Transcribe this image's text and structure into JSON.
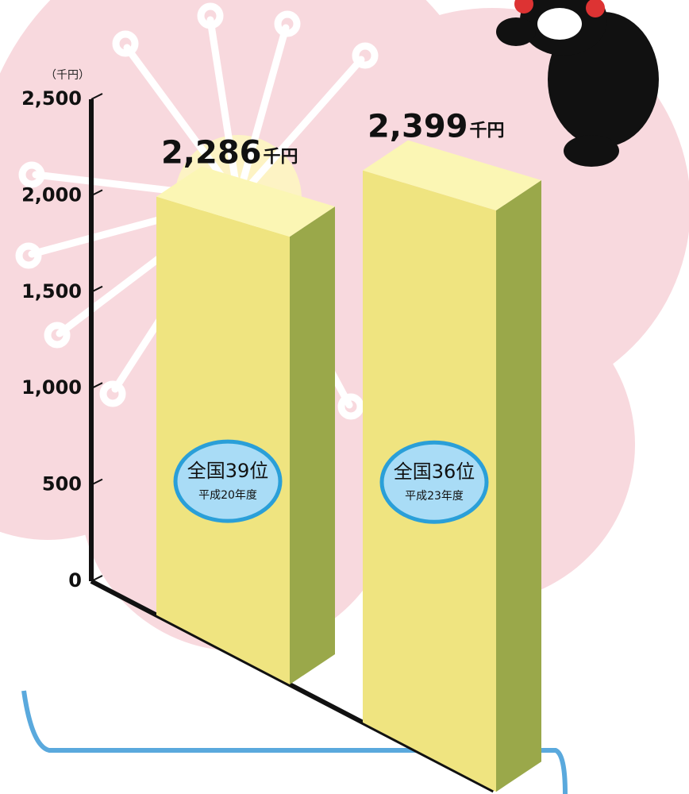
{
  "chart_data": {
    "type": "bar",
    "y_unit_label": "（千円）",
    "value_unit": "千円",
    "categories": [
      "平成20年度",
      "平成23年度"
    ],
    "ranks": [
      "全国39位",
      "全国36位"
    ],
    "values": [
      2286,
      2399
    ],
    "value_labels": [
      "2,286",
      "2,399"
    ],
    "color": "#efe480",
    "ylim": [
      0,
      2500
    ],
    "yticks": [
      0,
      500,
      {
        "value": 1000,
        "label": "1,000"
      },
      {
        "value": 1500,
        "label": "1,500"
      },
      {
        "value": 2000,
        "label": "2,000"
      },
      {
        "value": 2500,
        "label": "2,500"
      }
    ]
  }
}
